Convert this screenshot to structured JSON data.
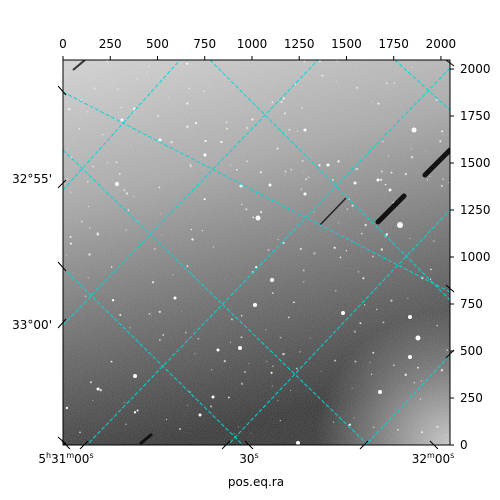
{
  "image": {
    "kind": "astronomical-grayscale-frame",
    "grid_color": "#00d8d8",
    "background_gradient": [
      "#d2d2d2",
      "#8a8a8a",
      "#1e1e1e"
    ]
  },
  "axes": {
    "xlabel": "pos.eq.ra",
    "top_ticks": [
      "0",
      "250",
      "500",
      "750",
      "1000",
      "1250",
      "1500",
      "1750",
      "2000"
    ],
    "right_ticks": [
      "0",
      "250",
      "500",
      "750",
      "1000",
      "1250",
      "1500",
      "1750",
      "2000"
    ],
    "ra_ticks": {
      "first": {
        "h": "5",
        "h_unit": "h",
        "m": "31",
        "m_unit": "m",
        "s": "00",
        "s_unit": "s"
      },
      "middle": {
        "s": "30",
        "s_unit": "s"
      },
      "last": {
        "m": "32",
        "m_unit": "m",
        "s": "00",
        "s_unit": "s"
      }
    },
    "dec_ticks": [
      "32°55'",
      "33°00'"
    ]
  }
}
